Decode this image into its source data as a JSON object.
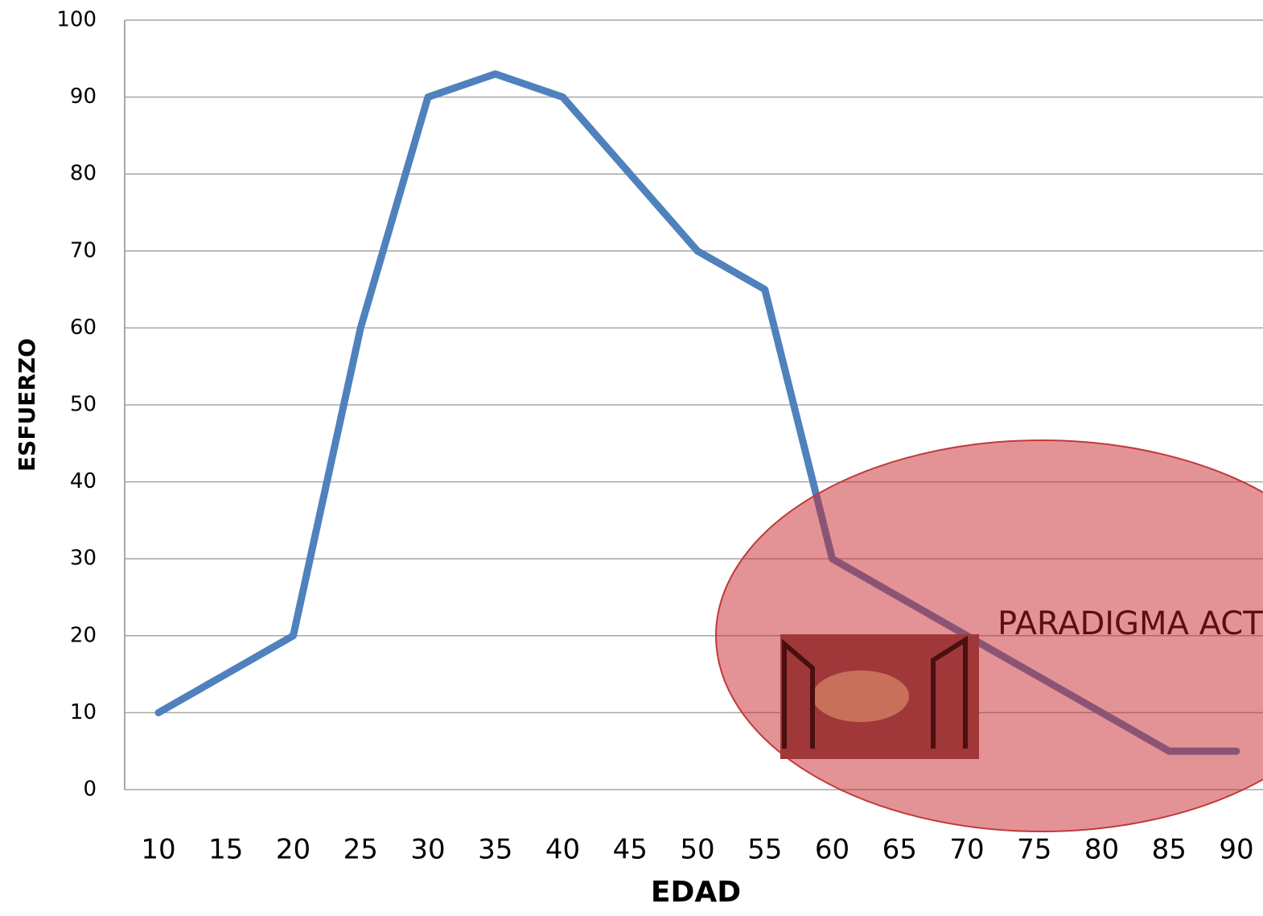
{
  "chart_data": {
    "type": "line",
    "xlabel": "EDAD",
    "ylabel": "ESFUERZO",
    "categories": [
      10,
      15,
      20,
      25,
      30,
      35,
      40,
      45,
      50,
      55,
      60,
      65,
      70,
      75,
      80,
      85,
      90
    ],
    "values": [
      10,
      15,
      20,
      60,
      90,
      93,
      90,
      80,
      70,
      65,
      30,
      25,
      20,
      15,
      10,
      5,
      5
    ],
    "color": "#4f81bd",
    "ylim": [
      0,
      100
    ],
    "yticks": [
      0,
      10,
      20,
      30,
      40,
      50,
      60,
      70,
      80,
      90,
      100
    ],
    "grid": true,
    "annotation": "PARADIGMA ACT"
  }
}
